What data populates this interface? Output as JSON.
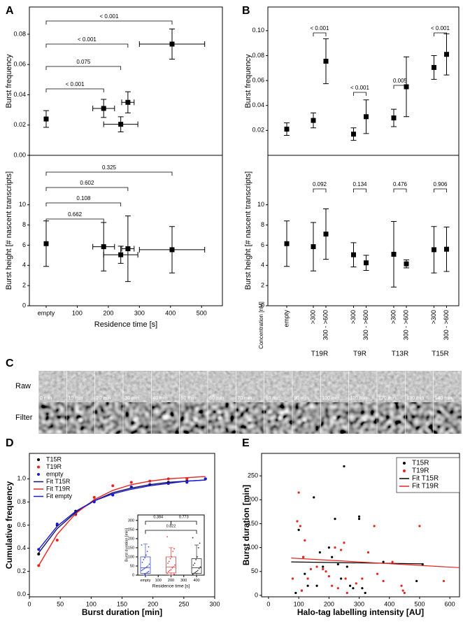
{
  "panel_labels": [
    "A",
    "B",
    "C",
    "D",
    "E"
  ],
  "chart_data": [
    {
      "type": "errorbar",
      "ylabel": "Burst frequency",
      "x": [
        0,
        185,
        240,
        263,
        405
      ],
      "xerr": [
        null,
        35,
        55,
        20,
        105
      ],
      "values": [
        0.024,
        0.031,
        0.0205,
        0.035,
        0.0735
      ],
      "yerr": [
        0.0055,
        0.006,
        0.005,
        0.007,
        0.01
      ],
      "annotations": [
        "< 0.001",
        "< 0.001",
        "0.075",
        "< 0.001"
      ],
      "xlim": [
        -54,
        567
      ],
      "ylim": [
        0,
        0.098
      ],
      "yticks": [
        {
          "value": 0,
          "label": "0.00"
        },
        0.02,
        0.04,
        0.06,
        0.08
      ],
      "color": "#000000"
    },
    {
      "type": "errorbar",
      "ylabel": "Burst height [# nascent transcripts]",
      "xlabel": "Residence time [s]",
      "x": [
        0,
        185,
        240,
        263,
        405
      ],
      "xerr": [
        null,
        35,
        55,
        20,
        105
      ],
      "values": [
        6.15,
        5.85,
        5.05,
        5.65,
        5.55
      ],
      "yerr": [
        2.25,
        2.4,
        0.85,
        3.25,
        2.3
      ],
      "annotations": [
        "0.325",
        "0.602",
        "0.108",
        "0.662"
      ],
      "xlim": [
        -54,
        567
      ],
      "ylim": [
        0,
        14.9
      ],
      "xticks": [
        {
          "value": 0,
          "label": "empty"
        },
        100,
        200,
        300,
        400,
        500
      ],
      "yticks": [
        0,
        2,
        4,
        6,
        8,
        10
      ],
      "color": "#000000"
    },
    {
      "type": "errorbar",
      "ylabel": "Burst frequency",
      "values": [
        0.021,
        0.028,
        0.0755,
        0.017,
        0.031,
        0.03,
        0.055,
        0.0705,
        0.081
      ],
      "yerr": [
        0.005,
        0.006,
        0.018,
        0.005,
        0.0135,
        0.007,
        0.024,
        0.0095,
        0.0165
      ],
      "annotations": [
        "< 0.001",
        "< 0.001",
        "0.005",
        "< 0.001"
      ],
      "ylim": [
        0,
        0.119
      ],
      "yticks": [
        0.02,
        0.04,
        0.06,
        0.08,
        {
          "value": 0.1,
          "label": "0.10"
        }
      ],
      "color": "#000000"
    },
    {
      "type": "errorbar",
      "ylabel": "Burst height [# nascent transcripts]",
      "category_axis_label": "Concentration [nM]",
      "categories": [
        "empty",
        ">300",
        "300 - >600",
        ">300",
        "300 - >600",
        ">300",
        "300 - >600",
        ">300",
        "300 - >600"
      ],
      "groups": [
        "T19R",
        "T9R",
        "T13R",
        "T15R"
      ],
      "values": [
        6.15,
        5.85,
        7.1,
        5.05,
        4.25,
        5.1,
        4.15,
        5.55,
        5.6
      ],
      "yerr": [
        2.25,
        2.4,
        2.5,
        1.2,
        0.75,
        3.25,
        0.4,
        2.3,
        2.2
      ],
      "annotations": [
        "0.092",
        "0.134",
        "0.476",
        "0.906"
      ],
      "ylim": [
        0,
        14.9
      ],
      "yticks": [
        0,
        2,
        4,
        6,
        8,
        10
      ],
      "color": "#000000"
    },
    {
      "type": "line",
      "xlabel": "Burst duration [min]",
      "ylabel": "Cumulative frequency",
      "legend": "upper left",
      "x": [
        15,
        45,
        75,
        105,
        135,
        165,
        195,
        225,
        255,
        285
      ],
      "series": [
        {
          "name": "T15R",
          "color": "#000000",
          "mode": "markers",
          "values": [
            0.35,
            0.6,
            0.72,
            0.81,
            0.86,
            0.93,
            0.95,
            0.97,
            0.98,
            1.0
          ]
        },
        {
          "name": "T19R",
          "color": "#e8251f",
          "mode": "markers",
          "values": [
            0.25,
            0.47,
            0.69,
            0.84,
            0.94,
            0.97,
            0.98,
            1.0,
            1.0,
            1.0
          ]
        },
        {
          "name": "empty",
          "color": "#1a1adb",
          "mode": "markers",
          "values": [
            0.39,
            0.61,
            0.7,
            0.8,
            0.86,
            0.93,
            0.95,
            0.96,
            0.97,
            1.0
          ]
        },
        {
          "name": "Fit T15R",
          "color": "#14145a",
          "mode": "line",
          "values": [
            0.36,
            0.57,
            0.71,
            0.81,
            0.88,
            0.92,
            0.95,
            0.97,
            0.98,
            0.99
          ]
        },
        {
          "name": "Fit T19R",
          "color": "#e8251f",
          "mode": "line",
          "values": [
            0.25,
            0.52,
            0.7,
            0.82,
            0.9,
            0.95,
            0.98,
            1.0,
            1.01,
            1.02
          ]
        },
        {
          "name": "Fit empty",
          "color": "#1a1adb",
          "mode": "line",
          "values": [
            0.39,
            0.59,
            0.72,
            0.81,
            0.87,
            0.91,
            0.94,
            0.96,
            0.98,
            0.99
          ]
        }
      ],
      "xlim": [
        0,
        300
      ],
      "ylim": [
        -0.02,
        1.22
      ],
      "xticks": [
        0,
        50,
        100,
        150,
        200,
        250,
        300
      ],
      "yticks": [
        {
          "value": 0,
          "label": "0.0"
        },
        0.2,
        0.4,
        0.6,
        0.8,
        {
          "value": 1,
          "label": "1.0"
        }
      ]
    },
    {
      "type": "box",
      "xlabel": "Residence time [s]",
      "ylabel": "Burst duration [min]",
      "x": [
        0,
        200,
        400
      ],
      "colors": [
        "#3b4fd6",
        "#e34040",
        "#333333"
      ],
      "min": [
        0,
        0,
        0
      ],
      "q1": [
        10,
        12,
        10
      ],
      "median": [
        40,
        45,
        40
      ],
      "q3": [
        100,
        100,
        90
      ],
      "max": [
        170,
        150,
        165
      ],
      "points": [
        [
          165,
          155,
          130,
          110,
          95,
          85,
          70,
          60,
          50,
          45,
          40,
          35,
          30,
          25,
          20,
          15,
          10,
          5
        ],
        [
          210,
          145,
          130,
          100,
          90,
          75,
          65,
          55,
          45,
          40,
          30,
          25,
          20,
          10,
          5
        ],
        [
          205,
          175,
          150,
          100,
          85,
          65,
          55,
          45,
          35,
          25,
          20,
          15,
          10,
          5
        ]
      ],
      "annotations": [
        "0.384",
        "0.773",
        "0.822"
      ],
      "xlim": [
        -60,
        460
      ],
      "ylim": [
        0,
        330
      ],
      "xticks": [
        {
          "value": 0,
          "label": "empty"
        },
        100,
        200,
        300,
        400
      ],
      "yticks": [
        0,
        50,
        100,
        150,
        200,
        250,
        300
      ]
    },
    {
      "type": "scatter",
      "xlabel": "Halo-tag labelling intensity [AU]",
      "ylabel": "Burst duration [min]",
      "legend": "upper right",
      "series": [
        {
          "name": "T15R",
          "color": "#000000",
          "mode": "markers",
          "x": [
            90,
            100,
            110,
            115,
            120,
            130,
            150,
            160,
            170,
            180,
            200,
            210,
            220,
            230,
            240,
            250,
            260,
            270,
            280,
            300,
            300,
            310,
            320,
            380,
            490,
            510
          ],
          "values": [
            5,
            137,
            10,
            80,
            45,
            20,
            205,
            20,
            90,
            60,
            100,
            80,
            160,
            65,
            35,
            270,
            60,
            20,
            15,
            165,
            160,
            15,
            5,
            70,
            30,
            65
          ]
        },
        {
          "name": "T19R",
          "color": "#e8251f",
          "mode": "markers",
          "x": [
            80,
            95,
            100,
            105,
            110,
            115,
            120,
            130,
            140,
            160,
            180,
            190,
            200,
            210,
            220,
            230,
            240,
            250,
            255,
            260,
            290,
            310,
            330,
            350,
            360,
            380,
            410,
            440,
            445,
            450,
            500,
            580
          ],
          "values": [
            35,
            155,
            215,
            145,
            10,
            80,
            115,
            35,
            55,
            60,
            55,
            50,
            40,
            20,
            100,
            15,
            95,
            110,
            35,
            5,
            25,
            35,
            90,
            145,
            45,
            30,
            70,
            20,
            10,
            5,
            145,
            30
          ]
        },
        {
          "name": "Fit T15R",
          "color": "#000000",
          "mode": "line",
          "x": [
            75,
            510
          ],
          "values": [
            70,
            66
          ]
        },
        {
          "name": "Fit T19R",
          "color": "#e8251f",
          "mode": "line",
          "x": [
            75,
            632
          ],
          "values": [
            78,
            58
          ]
        }
      ],
      "xlim": [
        -23,
        632
      ],
      "ylim": [
        -3,
        297
      ],
      "xticks": [
        0,
        100,
        200,
        300,
        400,
        500,
        600
      ],
      "yticks": [
        0,
        50,
        100,
        150,
        200,
        250
      ]
    }
  ],
  "image_strip": {
    "rows": [
      "Raw",
      "Filter"
    ],
    "frames": [
      "0 min",
      "10 min",
      "20 min",
      "30 min",
      "40 min",
      "50 min",
      "60 min",
      "70 min",
      "80 min",
      "90 min",
      "100 min",
      "110 min",
      "120 min",
      "130 min",
      "140 min"
    ]
  }
}
